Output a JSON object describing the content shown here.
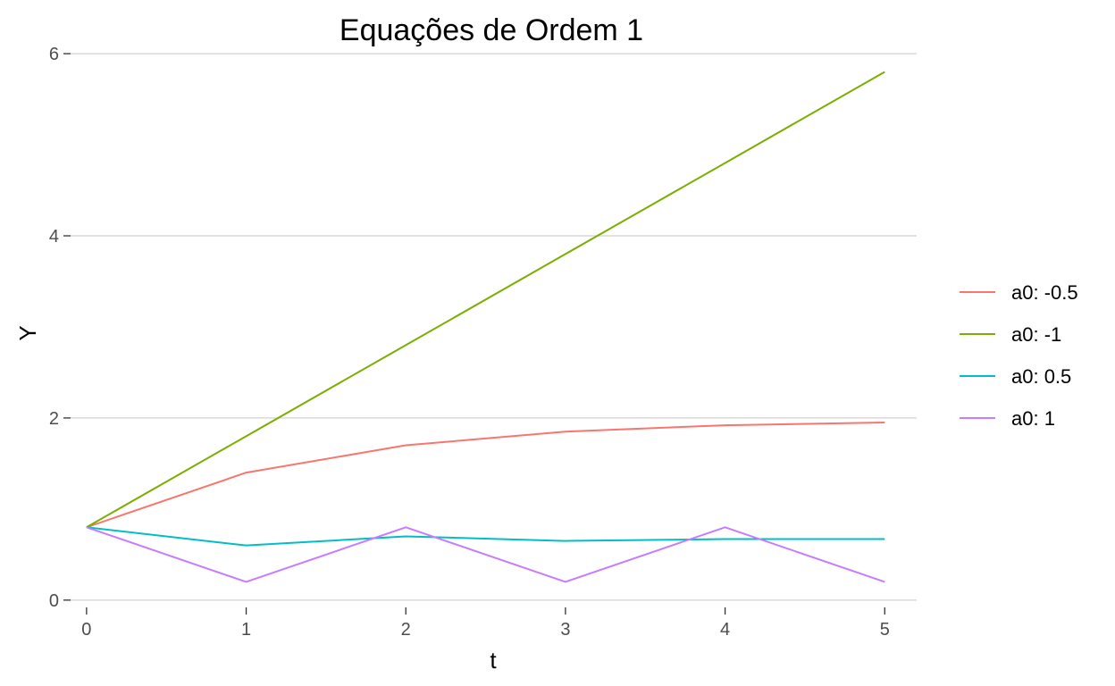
{
  "chart_data": {
    "type": "line",
    "title": "Equações de Ordem 1",
    "xlabel": "t",
    "ylabel": "Y",
    "x": [
      0,
      1,
      2,
      3,
      4,
      5
    ],
    "xlim": [
      -0.1,
      5.2
    ],
    "ylim": [
      -0.08,
      6.05
    ],
    "x_ticks": [
      0,
      1,
      2,
      3,
      4,
      5
    ],
    "y_ticks": [
      0,
      2,
      4,
      6
    ],
    "grid": "horizontal",
    "legend_position": "right",
    "series": [
      {
        "name": "a0: -0.5",
        "color": "#F8766D",
        "values": [
          0.8,
          1.4,
          1.7,
          1.85,
          1.92,
          1.95
        ]
      },
      {
        "name": "a0: -1",
        "color": "#7CAE00",
        "values": [
          0.8,
          1.8,
          2.8,
          3.8,
          4.8,
          5.8
        ]
      },
      {
        "name": "a0: 0.5",
        "color": "#00BFC4",
        "values": [
          0.8,
          0.6,
          0.7,
          0.65,
          0.67,
          0.67
        ]
      },
      {
        "name": "a0: 1",
        "color": "#C77CFF",
        "values": [
          0.8,
          0.2,
          0.8,
          0.2,
          0.8,
          0.2
        ]
      }
    ]
  }
}
